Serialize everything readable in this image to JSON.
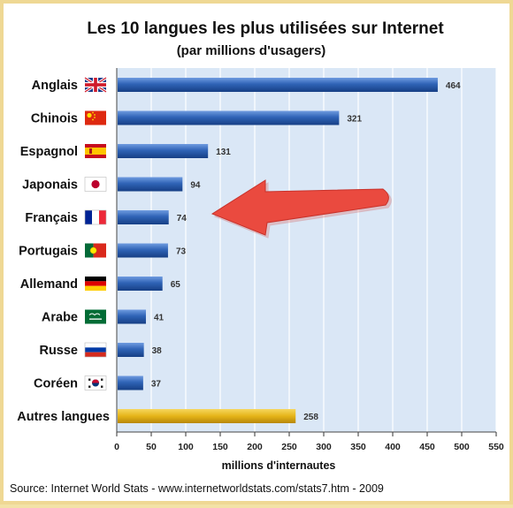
{
  "chart_data": {
    "type": "bar",
    "orientation": "horizontal",
    "title": "Les 10 langues les plus utilisées sur Internet",
    "subtitle": "(par millions d'usagers)",
    "xlabel": "millions d'internautes",
    "categories": [
      "Anglais",
      "Chinois",
      "Espagnol",
      "Japonais",
      "Français",
      "Portugais",
      "Allemand",
      "Arabe",
      "Russe",
      "Coréen",
      "Autres langues"
    ],
    "values": [
      464,
      321,
      131,
      94,
      74,
      73,
      65,
      41,
      38,
      37,
      258
    ],
    "flags": [
      "uk-flag-icon",
      "china-flag-icon",
      "spain-flag-icon",
      "japan-flag-icon",
      "france-flag-icon",
      "portugal-flag-icon",
      "germany-flag-icon",
      "saudi-arabia-flag-icon",
      "russia-flag-icon",
      "south-korea-flag-icon",
      ""
    ],
    "xlim": [
      0,
      550
    ],
    "xticks": [
      0,
      50,
      100,
      150,
      200,
      250,
      300,
      350,
      400,
      450,
      500,
      550
    ],
    "grid": true,
    "bar_color": "#2f63b6",
    "highlight_bar_color": "#e5b418",
    "plot_background": "#dae7f6",
    "annotation": {
      "type": "arrow",
      "points_to": "Français",
      "color": "#e8473c"
    },
    "source": "Source: Internet World Stats - www.internetworldstats.com/stats7.htm  -  2009"
  }
}
